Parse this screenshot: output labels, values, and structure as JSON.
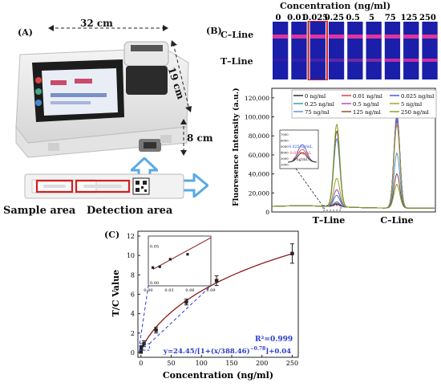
{
  "panels": {
    "A": {
      "label": "(A)",
      "width_dim": "32 cm",
      "depth_dim": "19 cm",
      "height_dim": "8 cm",
      "sample_area": "Sample area",
      "detection_area": "Detection area"
    },
    "B": {
      "label": "(B)",
      "strip_title": "Concentration (ng/ml)",
      "concentrations": [
        "0",
        "0.01",
        "0.025",
        "0.25",
        "0.5",
        "5",
        "75",
        "125",
        "250"
      ],
      "c_line_label": "C–Line",
      "t_line_label": "T–Line",
      "y_axis_label": "Fluoresence Intensity (a.u.)",
      "y_ticks": [
        "0",
        "20,000",
        "40,000",
        "60,000",
        "80,000",
        "100,000",
        "120,000"
      ],
      "x_t_label": "T–Line",
      "x_c_label": "C–Line",
      "inset_labels": [
        "0.025 ng/mL",
        "0.01 ng/mL",
        "0 ng/mL"
      ],
      "inset_ticks": [
        "7000",
        "6000",
        "5000",
        "4000",
        "3000",
        "2000"
      ]
    },
    "C": {
      "label": "(C)",
      "x_label": "Concentration (ng/ml)",
      "y_label": "T/C Value",
      "x_ticks": [
        "0",
        "50",
        "100",
        "150",
        "200",
        "250"
      ],
      "y_ticks": [
        "0",
        "2",
        "4",
        "6",
        "8",
        "10",
        "12"
      ],
      "inset_x_ticks": [
        "0.00",
        "0.03",
        "0.06",
        "0.09"
      ],
      "inset_y_ticks": [
        "0.00",
        "0.05"
      ],
      "r2": "R²=0.999",
      "equation_main": "y=24.45/[1+(x/388.46)",
      "equation_exp": "−0.78",
      "equation_tail": "]+0.04"
    }
  },
  "colors": {
    "blue_arrow": "#5aa9e6",
    "red_box": "#d02020",
    "fit_curve": "#8b1a1a",
    "dashed_blue": "#2a3bd0"
  },
  "chart_data": [
    {
      "type": "line",
      "title": "",
      "xlabel": "",
      "ylabel": "Fluoresence Intensity (a.u.)",
      "ylim": [
        0,
        130000
      ],
      "legend": "top",
      "series": [
        {
          "name": "0 ng/ml",
          "color": "#222222",
          "t_peak": 2500,
          "c_peak": 98000
        },
        {
          "name": "0.01 ng/ml",
          "color": "#e03030",
          "t_peak": 3500,
          "c_peak": 97000
        },
        {
          "name": "0.025 ng/ml",
          "color": "#3050e0",
          "t_peak": 5000,
          "c_peak": 96000
        },
        {
          "name": "0.25 ng/ml",
          "color": "#20a0a0",
          "t_peak": 12000,
          "c_peak": 94000
        },
        {
          "name": "0.5 ng/ml",
          "color": "#b040c0",
          "t_peak": 18000,
          "c_peak": 92000
        },
        {
          "name": "5 ng/ml",
          "color": "#9aa020",
          "t_peak": 30000,
          "c_peak": 88000
        },
        {
          "name": "75 ng/ml",
          "color": "#5090e0",
          "t_peak": 72000,
          "c_peak": 58000
        },
        {
          "name": "125 ng/ml",
          "color": "#8a4030",
          "t_peak": 80000,
          "c_peak": 36000
        },
        {
          "name": "250 ng/ml",
          "color": "#7aa020",
          "t_peak": 87000,
          "c_peak": 25000
        }
      ]
    },
    {
      "type": "scatter",
      "title": "",
      "xlabel": "Concentration (ng/ml)",
      "ylabel": "T/C Value",
      "xlim": [
        -5,
        260
      ],
      "ylim": [
        -0.5,
        12.5
      ],
      "points": [
        {
          "x": 0,
          "y": 0.05,
          "err": 0.1
        },
        {
          "x": 0.5,
          "y": 0.5,
          "err": 0.2
        },
        {
          "x": 5,
          "y": 0.9,
          "err": 0.3
        },
        {
          "x": 25,
          "y": 2.3,
          "err": 0.3
        },
        {
          "x": 75,
          "y": 5.2,
          "err": 0.3
        },
        {
          "x": 125,
          "y": 7.4,
          "err": 0.5
        },
        {
          "x": 250,
          "y": 10.2,
          "err": 1.0
        }
      ],
      "fit": {
        "a": 24.45,
        "b": 388.46,
        "c": -0.78,
        "d": 0.04
      },
      "annotations": [
        "R²=0.999",
        "y=24.45/[1+(x/388.46)^-0.78]+0.04"
      ],
      "inset": {
        "xlim": [
          0,
          0.09
        ],
        "ylim": [
          0,
          0.06
        ],
        "points": [
          {
            "x": 0.0,
            "y": 0.022
          },
          {
            "x": 0.01,
            "y": 0.023
          },
          {
            "x": 0.025,
            "y": 0.032
          },
          {
            "x": 0.05,
            "y": 0.038
          }
        ]
      }
    }
  ]
}
